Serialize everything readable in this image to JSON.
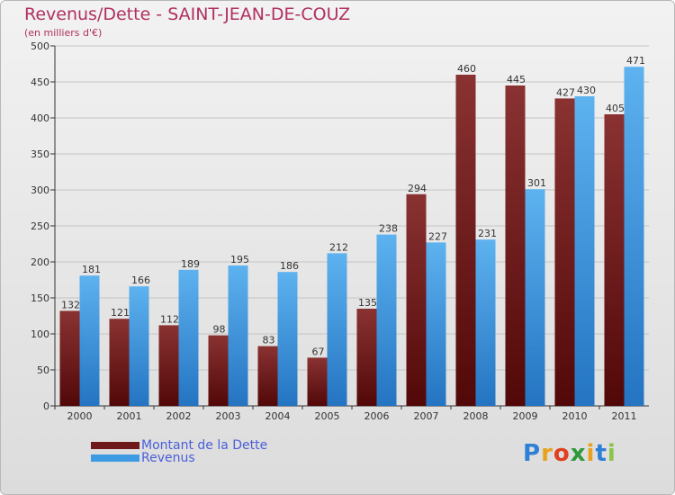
{
  "title": "Revenus/Dette - SAINT-JEAN-DE-COUZ",
  "subtitle": "(en milliers d'€)",
  "logo": {
    "text": "Proxiti",
    "letters": [
      "P",
      "r",
      "o",
      "x",
      "i",
      "t",
      "i"
    ],
    "colors": [
      "#2e7fd6",
      "#e8a220",
      "#e04020",
      "#2e9a3a",
      "#e8a220",
      "#2e7fd6",
      "#8bc34a"
    ]
  },
  "colors": {
    "dette": "#6e1a1a",
    "revenus": "#3d9be3",
    "title": "#b03060",
    "legend_text": "#4a5fd8"
  },
  "chart_data": {
    "type": "bar",
    "title": "Revenus/Dette - SAINT-JEAN-DE-COUZ",
    "ylabel": "(en milliers d'€)",
    "xlabel": "",
    "categories": [
      "2000",
      "2001",
      "2002",
      "2003",
      "2004",
      "2005",
      "2006",
      "2007",
      "2008",
      "2009",
      "2010",
      "2011"
    ],
    "series": [
      {
        "name": "Montant de la Dette",
        "values": [
          132,
          121,
          112,
          98,
          83,
          67,
          135,
          294,
          460,
          445,
          427,
          405
        ]
      },
      {
        "name": "Revenus",
        "values": [
          181,
          166,
          189,
          195,
          186,
          212,
          238,
          227,
          231,
          301,
          430,
          471
        ]
      }
    ],
    "ylim": [
      0,
      500
    ],
    "yticks": [
      0,
      50,
      100,
      150,
      200,
      250,
      300,
      350,
      400,
      450,
      500
    ],
    "grid": true,
    "legend": "bottom-left"
  }
}
